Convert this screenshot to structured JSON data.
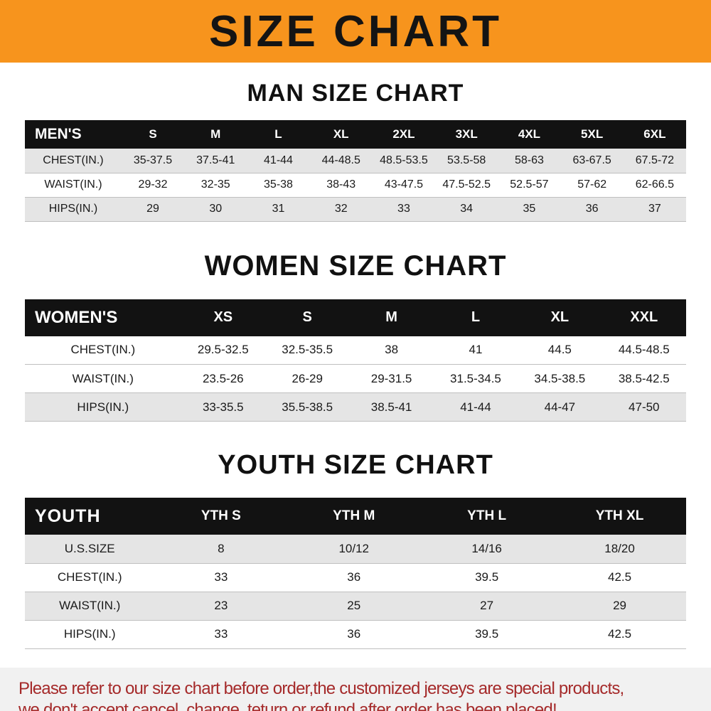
{
  "banner": {
    "title": "SIZE CHART",
    "background_color": "#f7941d",
    "text_color": "#141414"
  },
  "colors": {
    "table_header_bg": "#121212",
    "table_header_text": "#ffffff",
    "row_stripe": "#e5e5e5",
    "footer_text": "#a52a2a"
  },
  "chart_data": [
    {
      "type": "table",
      "title": "MAN SIZE CHART",
      "columns": [
        "MEN'S",
        "S",
        "M",
        "L",
        "XL",
        "2XL",
        "3XL",
        "4XL",
        "5XL",
        "6XL"
      ],
      "rows": [
        [
          "CHEST(IN.)",
          "35-37.5",
          "37.5-41",
          "41-44",
          "44-48.5",
          "48.5-53.5",
          "53.5-58",
          "58-63",
          "63-67.5",
          "67.5-72"
        ],
        [
          "WAIST(IN.)",
          "29-32",
          "32-35",
          "35-38",
          "38-43",
          "43-47.5",
          "47.5-52.5",
          "52.5-57",
          "57-62",
          "62-66.5"
        ],
        [
          "HIPS(IN.)",
          "29",
          "30",
          "31",
          "32",
          "33",
          "34",
          "35",
          "36",
          "37"
        ]
      ]
    },
    {
      "type": "table",
      "title": "WOMEN SIZE CHART",
      "columns": [
        "WOMEN'S",
        "XS",
        "S",
        "M",
        "L",
        "XL",
        "XXL"
      ],
      "rows": [
        [
          "CHEST(IN.)",
          "29.5-32.5",
          "32.5-35.5",
          "38",
          "41",
          "44.5",
          "44.5-48.5"
        ],
        [
          "WAIST(IN.)",
          "23.5-26",
          "26-29",
          "29-31.5",
          "31.5-34.5",
          "34.5-38.5",
          "38.5-42.5"
        ],
        [
          "HIPS(IN.)",
          "33-35.5",
          "35.5-38.5",
          "38.5-41",
          "41-44",
          "44-47",
          "47-50"
        ]
      ]
    },
    {
      "type": "table",
      "title": "YOUTH SIZE CHART",
      "columns": [
        "YOUTH",
        "YTH S",
        "YTH M",
        "YTH L",
        "YTH XL"
      ],
      "rows": [
        [
          "U.S.SIZE",
          "8",
          "10/12",
          "14/16",
          "18/20"
        ],
        [
          "CHEST(IN.)",
          "33",
          "36",
          "39.5",
          "42.5"
        ],
        [
          "WAIST(IN.)",
          "23",
          "25",
          "27",
          "29"
        ],
        [
          "HIPS(IN.)",
          "33",
          "36",
          "39.5",
          "42.5"
        ]
      ]
    }
  ],
  "footer": {
    "line1": "Please refer to our size chart before order,the customized jerseys are special products,",
    "line2": "we don't accept cancel, change, teturn or refund after order has been placed!"
  }
}
